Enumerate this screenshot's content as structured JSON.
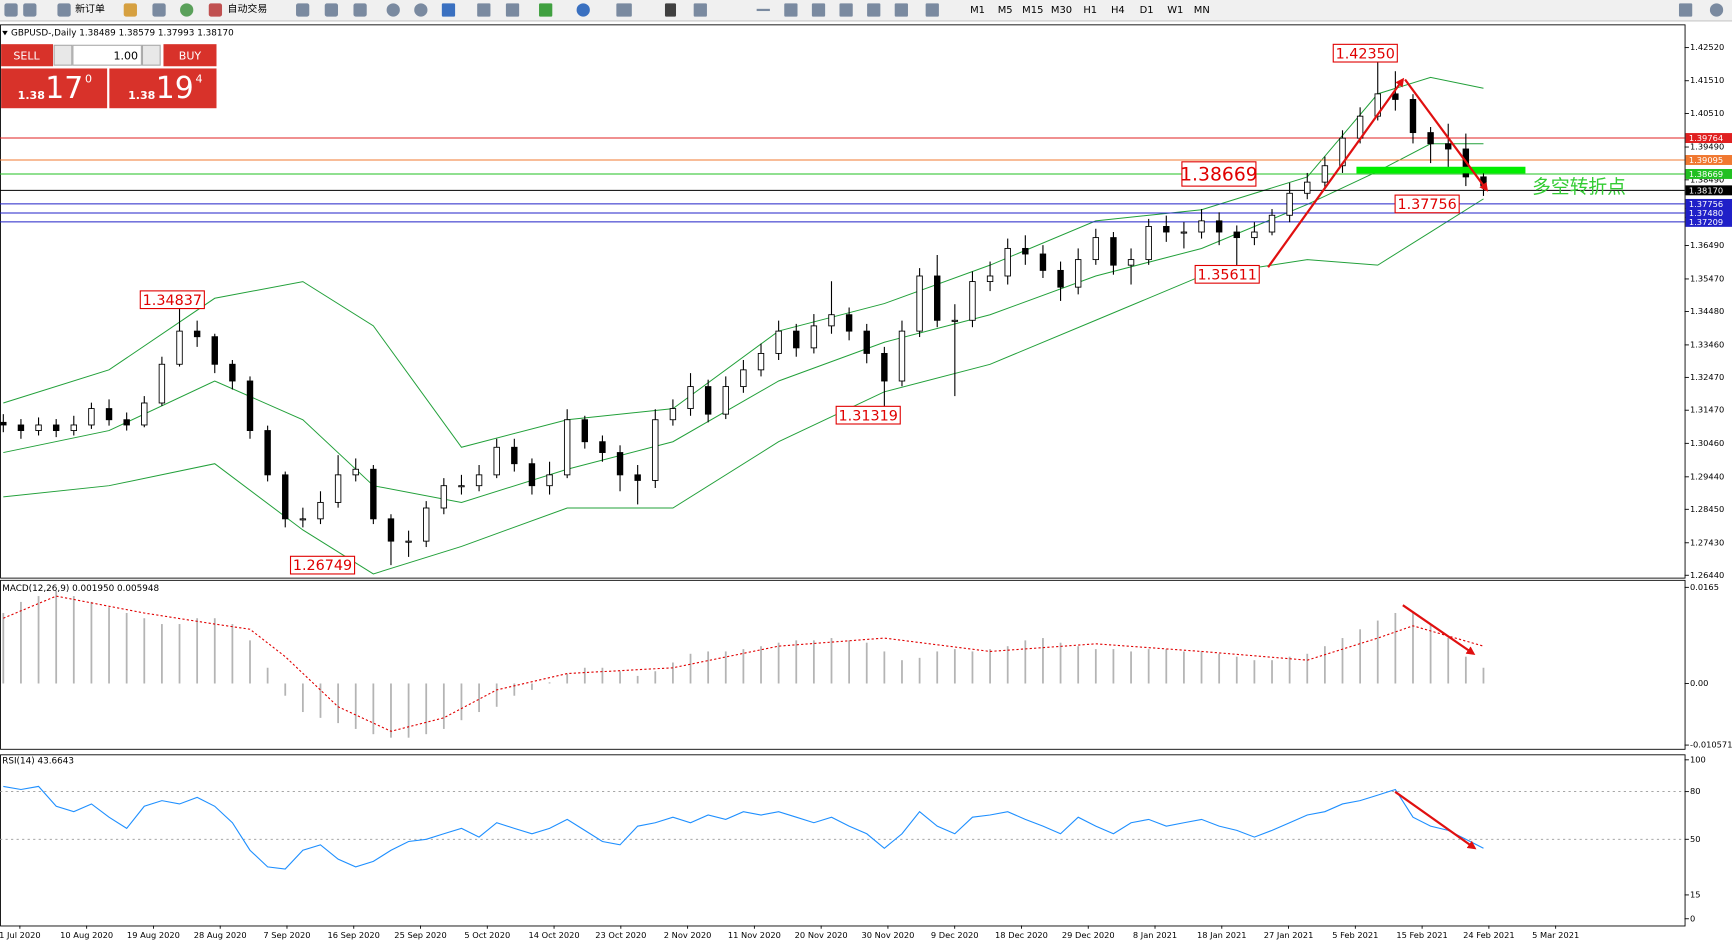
{
  "toolbar": {
    "new_order": "新订单",
    "auto_trading": "自动交易",
    "timeframes": [
      "M1",
      "M5",
      "M15",
      "M30",
      "H1",
      "H4",
      "D1",
      "W1",
      "MN"
    ]
  },
  "trade_panel": {
    "sell": "SELL",
    "buy": "BUY",
    "lot": "1.00",
    "sell_big": "1.38",
    "sell_pips": "17",
    "sell_frac": "0",
    "buy_big": "1.38",
    "buy_pips": "19",
    "buy_frac": "4"
  },
  "chart_data": [
    {
      "type": "candlestick",
      "title": "GBPUSD-,Daily  1.38489 1.38579 1.37993 1.38170",
      "up_color": "#ffffff",
      "down_color": "#000000",
      "open": [
        1.311,
        1.3102,
        1.3085,
        1.3102,
        1.3085,
        1.3102,
        1.3152,
        1.3118,
        1.3102,
        1.3169,
        1.3287,
        1.3388,
        1.3371,
        1.3287,
        1.3236,
        1.3085,
        1.295,
        1.2816,
        1.2816,
        1.2866,
        1.295,
        1.2967,
        1.2816,
        1.2748,
        1.2748,
        1.2849,
        1.2917,
        1.2917,
        1.295,
        1.3034,
        1.2984,
        1.2917,
        1.295,
        1.3118,
        1.3051,
        1.3018,
        1.295,
        1.2933,
        1.3118,
        1.3152,
        1.3219,
        1.3135,
        1.3219,
        1.327,
        1.332,
        1.3388,
        1.3337,
        1.3404,
        1.3438,
        1.3388,
        1.332,
        1.3236,
        1.3388,
        1.3556,
        1.3421,
        1.3421,
        1.3539,
        1.3556,
        1.364,
        1.3623,
        1.3573,
        1.3522,
        1.3606,
        1.3673,
        1.3589,
        1.3606,
        1.3707,
        1.369,
        1.369,
        1.3724,
        1.369,
        1.3673,
        1.369,
        1.3741,
        1.3808,
        1.3842,
        1.3892,
        1.3976,
        1.4043,
        1.4111,
        1.4094,
        1.3993,
        1.3959,
        1.3943,
        1.3858
      ],
      "high": [
        1.3135,
        1.312,
        1.3125,
        1.312,
        1.313,
        1.317,
        1.318,
        1.314,
        1.319,
        1.331,
        1.34837,
        1.342,
        1.338,
        1.33,
        1.325,
        1.31,
        1.296,
        1.285,
        1.29,
        1.301,
        1.3,
        1.298,
        1.283,
        1.278,
        1.287,
        1.294,
        1.295,
        1.298,
        1.306,
        1.306,
        1.3,
        1.299,
        1.315,
        1.313,
        1.307,
        1.304,
        1.298,
        1.315,
        1.318,
        1.326,
        1.324,
        1.325,
        1.33,
        1.335,
        1.342,
        1.341,
        1.344,
        1.354,
        1.346,
        1.341,
        1.334,
        1.342,
        1.358,
        1.362,
        1.347,
        1.357,
        1.36,
        1.367,
        1.368,
        1.365,
        1.36,
        1.364,
        1.37,
        1.369,
        1.364,
        1.373,
        1.374,
        1.372,
        1.376,
        1.375,
        1.371,
        1.372,
        1.376,
        1.384,
        1.387,
        1.392,
        1.4,
        1.407,
        1.4235,
        1.418,
        1.411,
        1.401,
        1.402,
        1.399,
        1.387
      ],
      "low": [
        1.308,
        1.306,
        1.307,
        1.3065,
        1.307,
        1.309,
        1.31,
        1.3085,
        1.3095,
        1.316,
        1.328,
        1.334,
        1.326,
        1.321,
        1.306,
        1.293,
        1.279,
        1.279,
        1.28,
        1.285,
        1.293,
        1.28,
        1.26749,
        1.27,
        1.273,
        1.283,
        1.289,
        1.29,
        1.294,
        1.296,
        1.289,
        1.289,
        1.294,
        1.303,
        1.299,
        1.29,
        1.286,
        1.291,
        1.31,
        1.313,
        1.311,
        1.312,
        1.32,
        1.325,
        1.33,
        1.331,
        1.332,
        1.338,
        1.336,
        1.329,
        1.31319,
        1.322,
        1.337,
        1.34,
        1.319,
        1.34,
        1.351,
        1.353,
        1.359,
        1.355,
        1.348,
        1.35,
        1.359,
        1.356,
        1.353,
        1.359,
        1.366,
        1.364,
        1.367,
        1.365,
        1.35611,
        1.365,
        1.368,
        1.372,
        1.379,
        1.382,
        1.387,
        1.396,
        1.403,
        1.406,
        1.396,
        1.39,
        1.388,
        1.383,
        1.38
      ],
      "close": [
        1.3102,
        1.3085,
        1.3102,
        1.3085,
        1.3102,
        1.3152,
        1.3118,
        1.3102,
        1.3169,
        1.3287,
        1.3388,
        1.3371,
        1.3287,
        1.3236,
        1.3085,
        1.295,
        1.2816,
        1.2816,
        1.2866,
        1.295,
        1.2967,
        1.2816,
        1.2748,
        1.2748,
        1.2849,
        1.2917,
        1.2917,
        1.295,
        1.3034,
        1.2984,
        1.2917,
        1.295,
        1.3118,
        1.3051,
        1.3018,
        1.295,
        1.2933,
        1.3118,
        1.3152,
        1.3219,
        1.3135,
        1.3219,
        1.327,
        1.332,
        1.3388,
        1.3337,
        1.3404,
        1.3438,
        1.3388,
        1.332,
        1.3236,
        1.3388,
        1.3556,
        1.3421,
        1.3421,
        1.3539,
        1.3556,
        1.364,
        1.3623,
        1.3573,
        1.3522,
        1.3606,
        1.3673,
        1.3589,
        1.3606,
        1.3707,
        1.369,
        1.369,
        1.3724,
        1.369,
        1.3673,
        1.369,
        1.3741,
        1.3808,
        1.3842,
        1.3892,
        1.3976,
        1.4043,
        1.4111,
        1.4094,
        1.3993,
        1.3959,
        1.3943,
        1.3858,
        1.3832
      ],
      "bands": {
        "color": "#22a03a",
        "x": [
          0,
          6,
          12,
          17,
          21,
          26,
          32,
          38,
          44,
          50,
          56,
          62,
          68,
          74,
          78,
          81,
          84
        ],
        "upper": [
          1.3169,
          1.327,
          1.3488,
          1.3539,
          1.3404,
          1.3034,
          1.3118,
          1.3152,
          1.3388,
          1.3472,
          1.3589,
          1.3724,
          1.3758,
          1.3858,
          1.4111,
          1.4161,
          1.4128
        ],
        "middle": [
          1.3018,
          1.3085,
          1.3236,
          1.3118,
          1.2917,
          1.2866,
          1.2967,
          1.3051,
          1.3236,
          1.3354,
          1.3438,
          1.3556,
          1.364,
          1.3774,
          1.3875,
          1.3959,
          1.3959
        ],
        "lower": [
          1.2883,
          1.2917,
          1.2984,
          1.2782,
          1.2648,
          1.2732,
          1.2849,
          1.2849,
          1.3051,
          1.3203,
          1.3287,
          1.3421,
          1.3556,
          1.3606,
          1.3589,
          1.369,
          1.3791
        ]
      },
      "ylim": [
        1.2637,
        1.4323
      ],
      "yticks": [
        {
          "value": 1.4252,
          "label": "1.42520"
        },
        {
          "value": 1.4151,
          "label": "1.41510"
        },
        {
          "value": 1.4051,
          "label": "1.40510"
        },
        {
          "value": 1.3949,
          "label": "1.39490"
        },
        {
          "value": 1.3849,
          "label": "1.38490"
        },
        {
          "value": 1.3649,
          "label": "1.36490"
        },
        {
          "value": 1.3547,
          "label": "1.35470"
        },
        {
          "value": 1.3448,
          "label": "1.34480"
        },
        {
          "value": 1.3346,
          "label": "1.33460"
        },
        {
          "value": 1.3247,
          "label": "1.32470"
        },
        {
          "value": 1.3147,
          "label": "1.31470"
        },
        {
          "value": 1.3046,
          "label": "1.30460"
        },
        {
          "value": 1.2944,
          "label": "1.29440"
        },
        {
          "value": 1.2845,
          "label": "1.28450"
        },
        {
          "value": 1.2743,
          "label": "1.27430"
        },
        {
          "value": 1.2644,
          "label": "1.26440"
        }
      ],
      "hlines": [
        {
          "value": 1.39764,
          "label": "1.39764",
          "color": "#e02020"
        },
        {
          "value": 1.39095,
          "label": "1.39095",
          "color": "#f07830"
        },
        {
          "value": 1.38669,
          "label": "1.38669",
          "color": "#22c022"
        },
        {
          "value": 1.3817,
          "label": "1.38170",
          "color": "#000000"
        },
        {
          "value": 1.37756,
          "label": "1.37756",
          "color": "#2020c8"
        },
        {
          "value": 1.3748,
          "label": "1.37480",
          "color": "#2020c8"
        },
        {
          "value": 1.37209,
          "label": "1.37209",
          "color": "#2020c8"
        }
      ],
      "annotations": [
        {
          "value": 1.4235,
          "label": "1.42350"
        },
        {
          "value": 1.38669,
          "label": "1.38669"
        },
        {
          "value": 1.37756,
          "label": "1.37756"
        },
        {
          "value": 1.35611,
          "label": "1.35611"
        },
        {
          "value": 1.34837,
          "label": "1.34837"
        },
        {
          "value": 1.31319,
          "label": "1.31319"
        },
        {
          "value": 1.26749,
          "label": "1.26749"
        }
      ],
      "note": "多空转折点",
      "x_labels": [
        "1 Jul 2020",
        "10 Aug 2020",
        "19 Aug 2020",
        "28 Aug 2020",
        "7 Sep 2020",
        "16 Sep 2020",
        "25 Sep 2020",
        "5 Oct 2020",
        "14 Oct 2020",
        "23 Oct 2020",
        "2 Nov 2020",
        "11 Nov 2020",
        "20 Nov 2020",
        "30 Nov 2020",
        "9 Dec 2020",
        "18 Dec 2020",
        "29 Dec 2020",
        "8 Jan 2021",
        "18 Jan 2021",
        "27 Jan 2021",
        "5 Feb 2021",
        "15 Feb 2021",
        "24 Feb 2021",
        "5 Mar 2021"
      ]
    },
    {
      "type": "macd",
      "title": "MACD(12,26,9) 0.001950 0.005948",
      "color": "#b4b4b4",
      "values": [
        0.0121,
        0.014,
        0.015,
        0.0159,
        0.015,
        0.014,
        0.0131,
        0.0121,
        0.0112,
        0.0102,
        0.0102,
        0.0112,
        0.0112,
        0.0102,
        0.0074,
        0.0027,
        -0.0021,
        -0.0049,
        -0.0059,
        -0.0068,
        -0.0078,
        -0.0087,
        -0.0093,
        -0.0093,
        -0.0087,
        -0.0078,
        -0.0063,
        -0.0049,
        -0.004,
        -0.0021,
        -0.0011,
        0.0002,
        0.0017,
        0.0027,
        0.0027,
        0.0021,
        0.0013,
        0.0021,
        0.0036,
        0.0051,
        0.0055,
        0.0055,
        0.0059,
        0.0064,
        0.007,
        0.0074,
        0.0074,
        0.0078,
        0.0074,
        0.007,
        0.0055,
        0.004,
        0.0044,
        0.0055,
        0.0059,
        0.0055,
        0.0059,
        0.0064,
        0.0074,
        0.0078,
        0.007,
        0.0064,
        0.0059,
        0.0059,
        0.0055,
        0.0059,
        0.0059,
        0.0055,
        0.0055,
        0.0051,
        0.0046,
        0.004,
        0.004,
        0.0046,
        0.0051,
        0.0064,
        0.0078,
        0.0093,
        0.0108,
        0.0121,
        0.0121,
        0.0102,
        0.0078,
        0.0046,
        0.0027
      ],
      "signal": {
        "color": "#e00000",
        "x": [
          0,
          3,
          8,
          12,
          14,
          16,
          19,
          22,
          25,
          28,
          32,
          38,
          44,
          50,
          56,
          62,
          68,
          74,
          78,
          80,
          84
        ],
        "values": [
          0.0112,
          0.015,
          0.0121,
          0.0102,
          0.0093,
          0.0046,
          -0.004,
          -0.0082,
          -0.0059,
          -0.0011,
          0.0017,
          0.0027,
          0.0064,
          0.0078,
          0.0055,
          0.0068,
          0.0055,
          0.004,
          0.0078,
          0.0099,
          0.0064
        ]
      },
      "ylim": [
        -0.0112,
        0.0178
      ],
      "yticks": [
        0.0165,
        {
          "value": 0,
          "label": "0.00"
        },
        -0.010571
      ]
    },
    {
      "type": "line",
      "title": "RSI(14) 43.6643",
      "color": "#1e8fff",
      "values": [
        83.3,
        81.3,
        83.3,
        70.8,
        67.4,
        72.2,
        63.9,
        56.9,
        70.8,
        74.3,
        72.2,
        76.4,
        70.8,
        60.4,
        43.1,
        32.6,
        31.3,
        43.1,
        46.5,
        37.5,
        32.6,
        36.1,
        43.1,
        48.6,
        50.0,
        53.5,
        56.9,
        51.4,
        60.4,
        56.9,
        53.5,
        56.9,
        62.5,
        55.6,
        48.6,
        46.5,
        58.3,
        60.4,
        63.9,
        60.4,
        65.3,
        62.5,
        67.4,
        65.3,
        67.4,
        63.9,
        60.4,
        63.9,
        58.3,
        53.5,
        44.4,
        53.5,
        67.4,
        58.3,
        53.5,
        63.9,
        65.3,
        67.4,
        62.5,
        58.3,
        53.5,
        63.9,
        58.3,
        53.5,
        60.4,
        62.5,
        58.3,
        60.4,
        62.5,
        58.3,
        55.6,
        51.4,
        55.6,
        60.4,
        65.3,
        67.4,
        72.2,
        74.3,
        77.8,
        81.3,
        63.9,
        58.3,
        55.6,
        50.0,
        44.4
      ],
      "ylim": [
        -4.2,
        103.5
      ],
      "yticks": [
        100,
        80,
        50,
        15,
        0
      ],
      "levels": [
        80,
        50
      ]
    }
  ]
}
